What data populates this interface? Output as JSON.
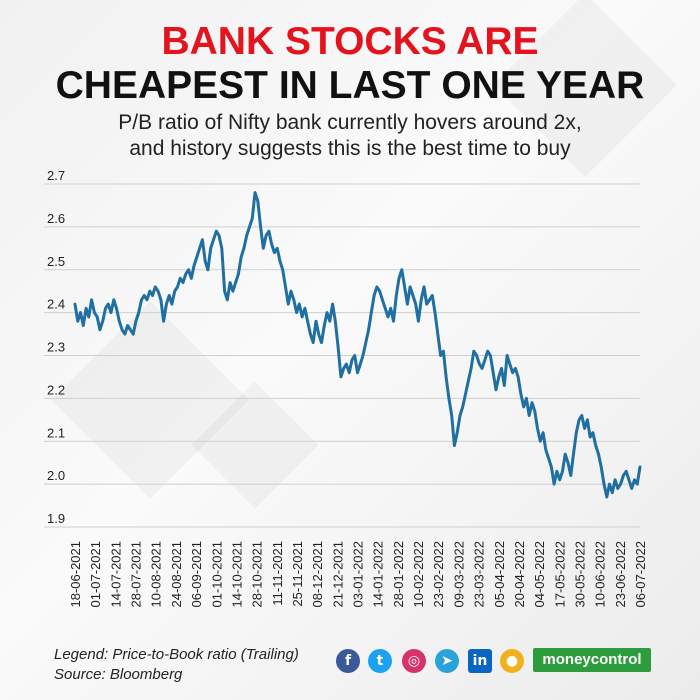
{
  "header": {
    "title_line1": "BANK STOCKS ARE",
    "title_line2": "CHEAPEST IN LAST ONE YEAR",
    "subtitle_line1": "P/B ratio of Nifty bank currently hovers around 2x,",
    "subtitle_line2": "and history suggests this is the best time to buy"
  },
  "colors": {
    "title_red": "#e3141d",
    "line": "#1f6fa2",
    "grid": "#cfcfcf"
  },
  "chart_data": {
    "type": "line",
    "title": "",
    "xlabel": "",
    "ylabel": "",
    "ylim": [
      1.9,
      2.7
    ],
    "yticks": [
      1.9,
      2.0,
      2.1,
      2.2,
      2.3,
      2.4,
      2.5,
      2.6,
      2.7
    ],
    "x_tick_labels": [
      "18-06-2021",
      "01-07-2021",
      "14-07-2021",
      "28-07-2021",
      "10-08-2021",
      "24-08-2021",
      "06-09-2021",
      "01-10-2021",
      "14-10-2021",
      "28-10-2021",
      "11-11-2021",
      "25-11-2021",
      "08-12-2021",
      "21-12-2021",
      "03-01-2022",
      "14-01-2022",
      "28-01-2022",
      "10-02-2022",
      "23-02-2022",
      "09-03-2022",
      "23-03-2022",
      "05-04-2022",
      "20-04-2022",
      "04-05-2022",
      "17-05-2022",
      "30-05-2022",
      "10-06-2022",
      "23-06-2022",
      "06-07-2022"
    ],
    "series": [
      {
        "name": "Price-to-Book ratio (Trailing)",
        "values": [
          2.42,
          2.38,
          2.4,
          2.37,
          2.41,
          2.39,
          2.43,
          2.4,
          2.39,
          2.36,
          2.38,
          2.41,
          2.42,
          2.4,
          2.43,
          2.41,
          2.38,
          2.36,
          2.35,
          2.37,
          2.36,
          2.35,
          2.38,
          2.4,
          2.43,
          2.44,
          2.43,
          2.45,
          2.44,
          2.46,
          2.45,
          2.43,
          2.38,
          2.42,
          2.44,
          2.42,
          2.45,
          2.46,
          2.48,
          2.47,
          2.49,
          2.5,
          2.48,
          2.51,
          2.53,
          2.55,
          2.57,
          2.52,
          2.5,
          2.55,
          2.57,
          2.59,
          2.58,
          2.55,
          2.45,
          2.43,
          2.47,
          2.45,
          2.47,
          2.49,
          2.53,
          2.55,
          2.58,
          2.6,
          2.62,
          2.68,
          2.66,
          2.6,
          2.55,
          2.58,
          2.59,
          2.56,
          2.54,
          2.55,
          2.52,
          2.5,
          2.46,
          2.42,
          2.45,
          2.43,
          2.4,
          2.42,
          2.39,
          2.41,
          2.38,
          2.35,
          2.33,
          2.38,
          2.35,
          2.33,
          2.37,
          2.4,
          2.38,
          2.42,
          2.38,
          2.32,
          2.25,
          2.27,
          2.28,
          2.26,
          2.29,
          2.3,
          2.26,
          2.28,
          2.3,
          2.33,
          2.36,
          2.4,
          2.44,
          2.46,
          2.45,
          2.43,
          2.41,
          2.39,
          2.41,
          2.38,
          2.44,
          2.48,
          2.5,
          2.46,
          2.42,
          2.46,
          2.44,
          2.42,
          2.38,
          2.43,
          2.46,
          2.42,
          2.43,
          2.44,
          2.4,
          2.35,
          2.3,
          2.31,
          2.25,
          2.2,
          2.16,
          2.09,
          2.12,
          2.16,
          2.18,
          2.21,
          2.24,
          2.27,
          2.31,
          2.3,
          2.28,
          2.27,
          2.29,
          2.31,
          2.3,
          2.26,
          2.22,
          2.25,
          2.27,
          2.23,
          2.3,
          2.28,
          2.26,
          2.27,
          2.25,
          2.21,
          2.18,
          2.2,
          2.16,
          2.19,
          2.17,
          2.13,
          2.1,
          2.12,
          2.08,
          2.06,
          2.04,
          2.0,
          2.03,
          2.01,
          2.03,
          2.07,
          2.05,
          2.02,
          2.07,
          2.12,
          2.15,
          2.16,
          2.13,
          2.15,
          2.11,
          2.12,
          2.09,
          2.07,
          2.04,
          2.0,
          1.97,
          2.0,
          1.98,
          2.01,
          1.99,
          2.0,
          2.02,
          2.03,
          2.01,
          1.99,
          2.01,
          2.0,
          2.04
        ]
      }
    ],
    "legend": "Legend: Price-to-Book ratio (Trailing)",
    "source": "Source: Bloomberg"
  },
  "footer": {
    "legend": "Legend: Price-to-Book ratio (Trailing)",
    "source": "Source: Bloomberg",
    "social_icons": [
      {
        "name": "facebook",
        "glyph": "f",
        "color": "#3b5998"
      },
      {
        "name": "twitter",
        "glyph": "t",
        "color": "#1da1f2"
      },
      {
        "name": "instagram",
        "glyph": "◎",
        "color": "#d6336c"
      },
      {
        "name": "telegram",
        "glyph": "➤",
        "color": "#2aa3d9"
      },
      {
        "name": "linkedin",
        "glyph": "in",
        "color": "#0a66c2"
      },
      {
        "name": "koo",
        "glyph": "●",
        "color": "#f2b01e"
      }
    ],
    "brand": "moneycontrol"
  }
}
